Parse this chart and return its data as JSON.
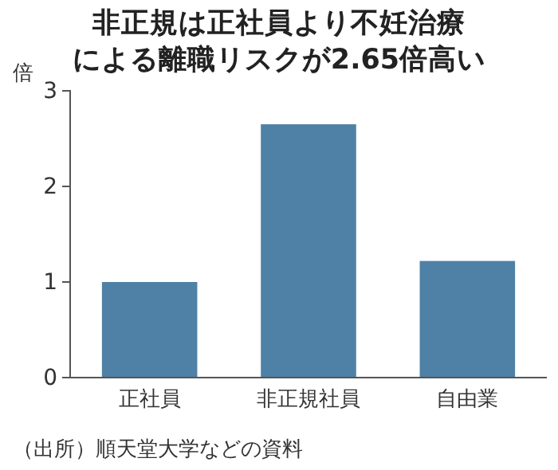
{
  "chart_data": {
    "type": "bar",
    "title": "非正規は正社員より不妊治療による離職リスクが2.65倍高い",
    "ylabel": "倍",
    "categories": [
      "正社員",
      "非正規社員",
      "自由業"
    ],
    "values": [
      1.0,
      2.65,
      1.22
    ],
    "color": "#4f81a6",
    "ylim": [
      0,
      3
    ],
    "yticks": [
      0,
      1,
      2,
      3
    ],
    "grid": false,
    "annotations": [
      "（出所）順天堂大学などの資料"
    ]
  }
}
